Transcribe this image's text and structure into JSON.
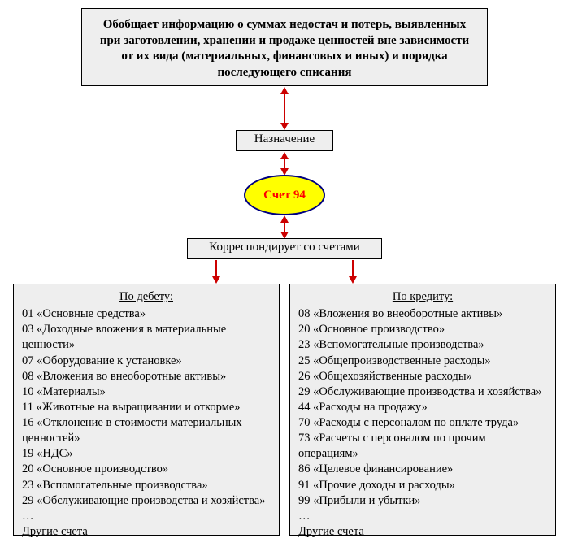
{
  "colors": {
    "box_bg": "#eeeeee",
    "box_border": "#000000",
    "ellipse_fill": "#ffff00",
    "ellipse_border": "#000080",
    "ellipse_text": "#ff0000",
    "arrow": "#cc0000",
    "page_bg": "#ffffff",
    "text": "#000000"
  },
  "top_text": "Обобщает информацию о суммах недостач и потерь, выявленных при заготовлении, хранении и продаже ценностей вне зависимости от их вида (материальных, финансовых и иных) и порядка последующего списания",
  "purpose_label": "Назначение",
  "center_label": "Счет 94",
  "corresponds_label": "Корреспондирует со счетами",
  "debit": {
    "title": "По дебету:",
    "items": [
      "01 «Основные средства»",
      "03 «Доходные вложения в материальные ценности»",
      "07 «Оборудование к установке»",
      "08 «Вложения во внеоборотные активы»",
      "10 «Материалы»",
      "11 «Животные на выращивании и откорме»",
      "16 «Отклонение в стоимости материальных ценностей»",
      "19 «НДС»",
      "20 «Основное производство»",
      "23 «Вспомогательные производства»",
      "29 «Обслуживающие производства и хозяйства»",
      "…",
      "Другие счета"
    ]
  },
  "credit": {
    "title": "По кредиту:",
    "items": [
      "08 «Вложения во внеоборотные активы»",
      "20 «Основное производство»",
      "23 «Вспомогательные производства»",
      "25 «Общепроизводственные расходы»",
      "26 «Общехозяйственные расходы»",
      "29 «Обслуживающие производства и хозяйства»",
      "44 «Расходы на продажу»",
      "70 «Расходы с персоналом по оплате труда»",
      "73 «Расчеты с персоналом по прочим операциям»",
      "86 «Целевое финансирование»",
      "91 «Прочие доходы и расходы»",
      "99 «Прибыли и убытки»",
      "…",
      "Другие счета"
    ]
  }
}
